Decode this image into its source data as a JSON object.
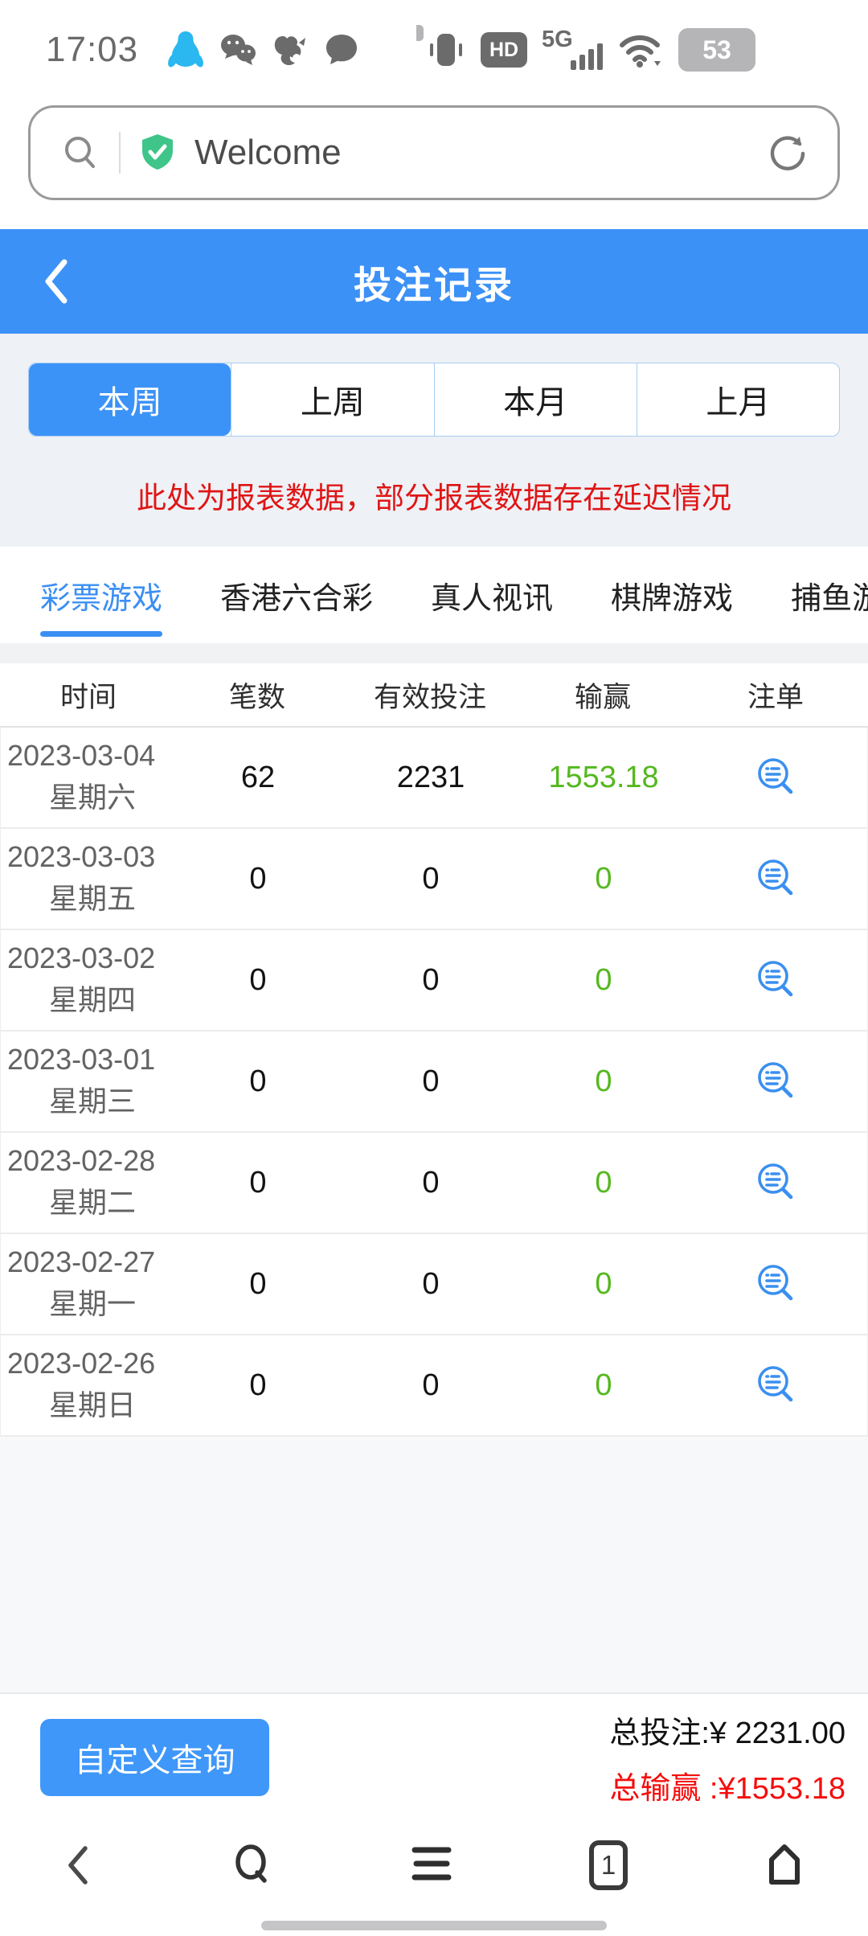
{
  "status_bar": {
    "time": "17:03",
    "hd_label": "HD",
    "network_label": "5G",
    "battery_percent": "53"
  },
  "url_bar": {
    "site_label": "Welcome"
  },
  "app_header": {
    "title": "投注记录"
  },
  "period_tabs": [
    {
      "label": "本周",
      "active": true
    },
    {
      "label": "上周",
      "active": false
    },
    {
      "label": "本月",
      "active": false
    },
    {
      "label": "上月",
      "active": false
    }
  ],
  "notice_text": "此处为报表数据，部分报表数据存在延迟情况",
  "category_tabs": [
    {
      "label": "彩票游戏",
      "active": true
    },
    {
      "label": "香港六合彩",
      "active": false
    },
    {
      "label": "真人视讯",
      "active": false
    },
    {
      "label": "棋牌游戏",
      "active": false
    },
    {
      "label": "捕鱼游戏",
      "active": false
    }
  ],
  "table": {
    "columns": [
      "时间",
      "笔数",
      "有效投注",
      "输赢",
      "注单"
    ],
    "rows": [
      {
        "date": "2023-03-04",
        "weekday": "星期六",
        "count": "62",
        "valid_bet": "2231",
        "win_loss": "1553.18"
      },
      {
        "date": "2023-03-03",
        "weekday": "星期五",
        "count": "0",
        "valid_bet": "0",
        "win_loss": "0"
      },
      {
        "date": "2023-03-02",
        "weekday": "星期四",
        "count": "0",
        "valid_bet": "0",
        "win_loss": "0"
      },
      {
        "date": "2023-03-01",
        "weekday": "星期三",
        "count": "0",
        "valid_bet": "0",
        "win_loss": "0"
      },
      {
        "date": "2023-02-28",
        "weekday": "星期二",
        "count": "0",
        "valid_bet": "0",
        "win_loss": "0"
      },
      {
        "date": "2023-02-27",
        "weekday": "星期一",
        "count": "0",
        "valid_bet": "0",
        "win_loss": "0"
      },
      {
        "date": "2023-02-26",
        "weekday": "星期日",
        "count": "0",
        "valid_bet": "0",
        "win_loss": "0"
      }
    ]
  },
  "footer": {
    "query_button_label": "自定义查询",
    "total_bet": "总投注:¥ 2231.00",
    "total_win": "总输赢 :¥1553.18"
  },
  "browser_nav": {
    "tab_count": "1"
  },
  "colors": {
    "accent_blue": "#3b91f6",
    "category_blue": "#3b8ff2",
    "notice_red": "#e01515",
    "total_red": "#f50d0d",
    "win_green": "#54b81f",
    "shield_green": "#3fc589",
    "light_bg": "#eef1f6"
  }
}
